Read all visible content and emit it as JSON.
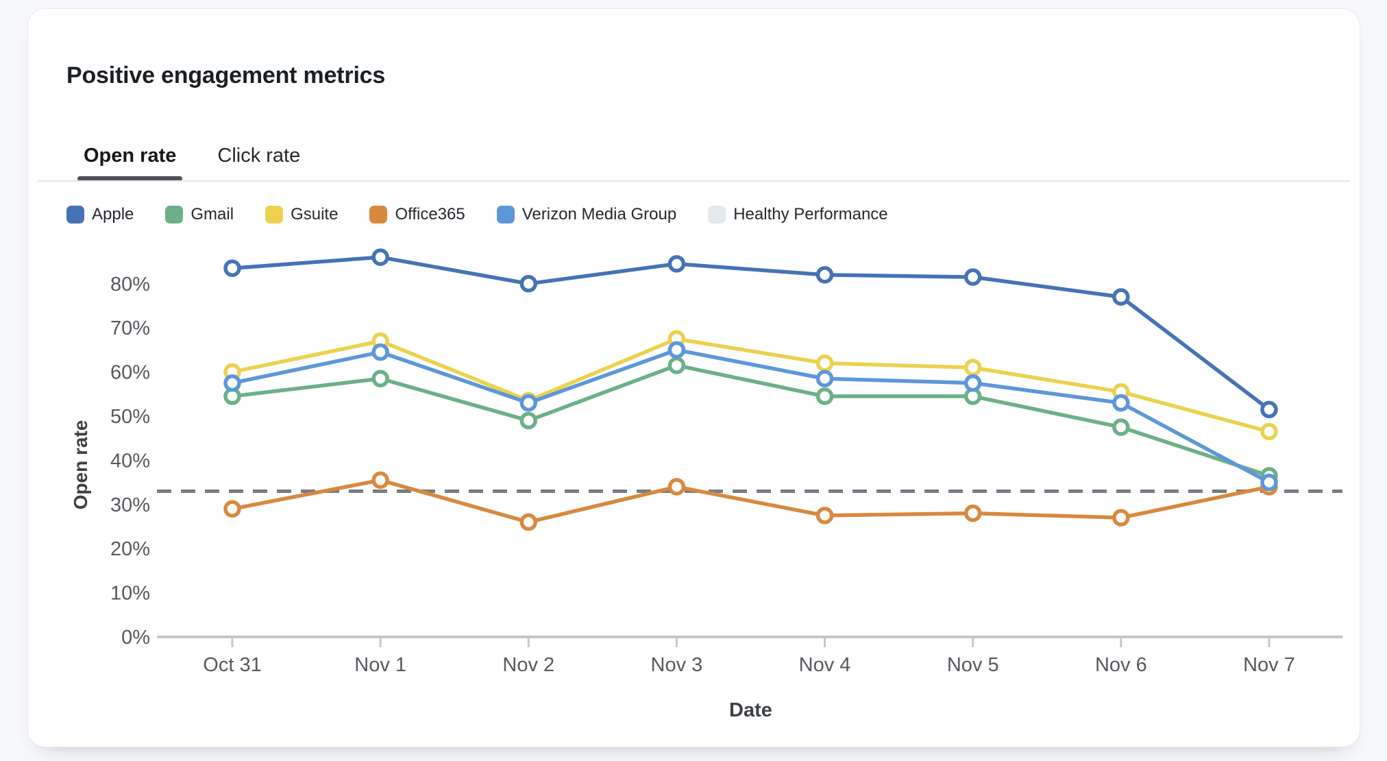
{
  "card": {
    "title": "Positive engagement metrics"
  },
  "tabs": [
    {
      "label": "Open rate",
      "active": true
    },
    {
      "label": "Click rate",
      "active": false
    }
  ],
  "chart_data": {
    "type": "line",
    "title": "Positive engagement metrics",
    "categories": [
      "Oct 31",
      "Nov 1",
      "Nov 2",
      "Nov 3",
      "Nov 4",
      "Nov 5",
      "Nov 6",
      "Nov 7"
    ],
    "xlabel": "Date",
    "ylabel": "Open rate",
    "ylim": [
      0,
      90
    ],
    "yticks": [
      0,
      10,
      20,
      30,
      40,
      50,
      60,
      70,
      80
    ],
    "ytick_suffix": "%",
    "grid": false,
    "legend_position": "top",
    "marker": "open-circle",
    "axis_color": "#c2c7cc",
    "tick_text_color": "#55595e",
    "axis_title_color": "#3d4145",
    "series": [
      {
        "name": "Apple",
        "color": "#4573b5",
        "style": "solid",
        "values": [
          83.5,
          86,
          80,
          84.5,
          82,
          81.5,
          77,
          51.5
        ]
      },
      {
        "name": "Gmail",
        "color": "#6bb088",
        "style": "solid",
        "values": [
          54.5,
          58.5,
          49,
          61.5,
          54.5,
          54.5,
          47.5,
          36.5
        ]
      },
      {
        "name": "Gsuite",
        "color": "#ecd14f",
        "style": "solid",
        "values": [
          60,
          67,
          53.5,
          67.5,
          62,
          61,
          55.5,
          46.5
        ]
      },
      {
        "name": "Office365",
        "color": "#d8893f",
        "style": "solid",
        "values": [
          29,
          35.5,
          26,
          34,
          27.5,
          28,
          27,
          34
        ]
      },
      {
        "name": "Verizon Media Group",
        "color": "#5d97d8",
        "style": "solid",
        "values": [
          57.5,
          64.5,
          53,
          65,
          58.5,
          57.5,
          53,
          35
        ]
      },
      {
        "name": "Healthy Performance",
        "color": "#767d85",
        "swatch": "#e4e9ed",
        "style": "dashed",
        "values": [
          33,
          33,
          33,
          33,
          33,
          33,
          33,
          33
        ]
      }
    ]
  }
}
